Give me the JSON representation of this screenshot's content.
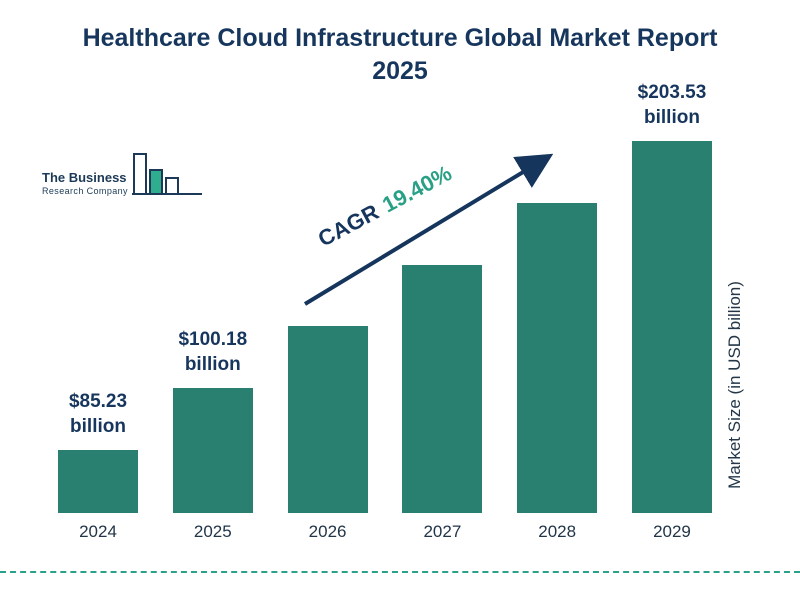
{
  "title": "Healthcare Cloud Infrastructure Global Market Report 2025",
  "logo": {
    "line1": "The Business",
    "line2": "Research Company"
  },
  "annotation": {
    "cagr_label": "CAGR",
    "cagr_value": "19.40%"
  },
  "axis": {
    "y_label": "Market Size (in USD billion)"
  },
  "colors": {
    "bar": "#2a8070",
    "title": "#17365d",
    "cagr_value": "#29a086",
    "arrow": "#16355c",
    "dashed_line": "#2aa18a"
  },
  "chart_data": {
    "type": "bar",
    "title": "Healthcare Cloud Infrastructure Global Market Report 2025",
    "ylabel": "Market Size (in USD billion)",
    "cagr_percent": 19.4,
    "categories": [
      "2024",
      "2025",
      "2026",
      "2027",
      "2028",
      "2029"
    ],
    "values": [
      85.23,
      100.18,
      119.62,
      142.82,
      170.53,
      203.53
    ],
    "values_note": "2026-2028 estimated from 19.40% CAGR; only 2024, 2025 and 2029 are labeled on the chart",
    "ylim": [
      0,
      220
    ],
    "grid": false,
    "legend": false,
    "bars": [
      {
        "year": "2024",
        "value": 85.23,
        "label_value": "$85.23",
        "label_unit": "billion"
      },
      {
        "year": "2025",
        "value": 100.18,
        "label_value": "$100.18",
        "label_unit": "billion"
      },
      {
        "year": "2026",
        "value": 119.62,
        "label_value": "",
        "label_unit": ""
      },
      {
        "year": "2027",
        "value": 142.82,
        "label_value": "",
        "label_unit": ""
      },
      {
        "year": "2028",
        "value": 170.53,
        "label_value": "",
        "label_unit": ""
      },
      {
        "year": "2029",
        "value": 203.53,
        "label_value": "$203.53",
        "label_unit": "billion"
      }
    ]
  }
}
